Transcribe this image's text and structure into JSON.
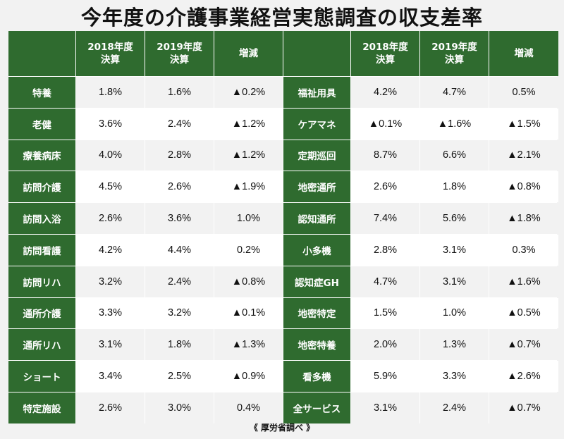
{
  "title": "今年度の介護事業経営実態調査の収支差率",
  "header": {
    "col1": [
      "2018年度",
      "決算"
    ],
    "col2": [
      "2019年度",
      "決算"
    ],
    "col3": "増減"
  },
  "rows": [
    {
      "left": {
        "name": "特養",
        "v2018": "1.8%",
        "v2019": "1.6%",
        "diff": "▲0.2%"
      },
      "right": {
        "name": "福祉用具",
        "v2018": "4.2%",
        "v2019": "4.7%",
        "diff": "0.5%"
      }
    },
    {
      "left": {
        "name": "老健",
        "v2018": "3.6%",
        "v2019": "2.4%",
        "diff": "▲1.2%"
      },
      "right": {
        "name": "ケアマネ",
        "v2018": "▲0.1%",
        "v2019": "▲1.6%",
        "diff": "▲1.5%"
      }
    },
    {
      "left": {
        "name": "療養病床",
        "v2018": "4.0%",
        "v2019": "2.8%",
        "diff": "▲1.2%"
      },
      "right": {
        "name": "定期巡回",
        "v2018": "8.7%",
        "v2019": "6.6%",
        "diff": "▲2.1%"
      }
    },
    {
      "left": {
        "name": "訪問介護",
        "v2018": "4.5%",
        "v2019": "2.6%",
        "diff": "▲1.9%"
      },
      "right": {
        "name": "地密通所",
        "v2018": "2.6%",
        "v2019": "1.8%",
        "diff": "▲0.8%"
      }
    },
    {
      "left": {
        "name": "訪問入浴",
        "v2018": "2.6%",
        "v2019": "3.6%",
        "diff": "1.0%"
      },
      "right": {
        "name": "認知通所",
        "v2018": "7.4%",
        "v2019": "5.6%",
        "diff": "▲1.8%"
      }
    },
    {
      "left": {
        "name": "訪問看護",
        "v2018": "4.2%",
        "v2019": "4.4%",
        "diff": "0.2%"
      },
      "right": {
        "name": "小多機",
        "v2018": "2.8%",
        "v2019": "3.1%",
        "diff": "0.3%"
      }
    },
    {
      "left": {
        "name": "訪問リハ",
        "v2018": "3.2%",
        "v2019": "2.4%",
        "diff": "▲0.8%"
      },
      "right": {
        "name": "認知症GH",
        "v2018": "4.7%",
        "v2019": "3.1%",
        "diff": "▲1.6%"
      }
    },
    {
      "left": {
        "name": "通所介護",
        "v2018": "3.3%",
        "v2019": "3.2%",
        "diff": "▲0.1%"
      },
      "right": {
        "name": "地密特定",
        "v2018": "1.5%",
        "v2019": "1.0%",
        "diff": "▲0.5%"
      }
    },
    {
      "left": {
        "name": "通所リハ",
        "v2018": "3.1%",
        "v2019": "1.8%",
        "diff": "▲1.3%"
      },
      "right": {
        "name": "地密特養",
        "v2018": "2.0%",
        "v2019": "1.3%",
        "diff": "▲0.7%"
      }
    },
    {
      "left": {
        "name": "ショート",
        "v2018": "3.4%",
        "v2019": "2.5%",
        "diff": "▲0.9%"
      },
      "right": {
        "name": "看多機",
        "v2018": "5.9%",
        "v2019": "3.3%",
        "diff": "▲2.6%"
      }
    },
    {
      "left": {
        "name": "特定施設",
        "v2018": "2.6%",
        "v2019": "3.0%",
        "diff": "0.4%"
      },
      "right": {
        "name": "全サービス",
        "v2018": "3.1%",
        "v2019": "2.4%",
        "diff": "▲0.7%"
      }
    }
  ],
  "footer": "《 厚労省調べ 》",
  "colors": {
    "header_green": "#2f6b2f",
    "cell_gray": "#f2f2f2",
    "cell_white": "#ffffff"
  }
}
